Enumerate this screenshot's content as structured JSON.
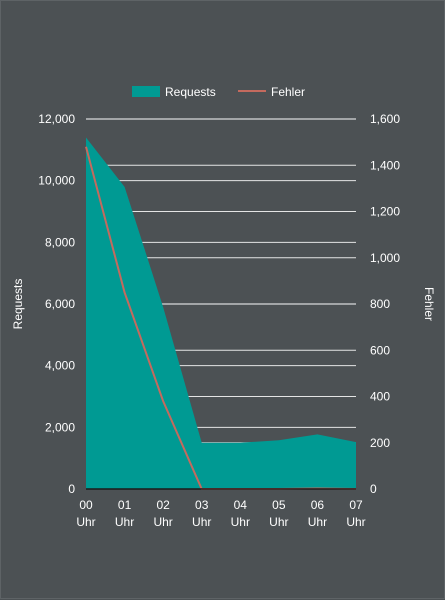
{
  "chart_data": {
    "type": "area",
    "categories": [
      [
        "00",
        "Uhr"
      ],
      [
        "01",
        "Uhr"
      ],
      [
        "02",
        "Uhr"
      ],
      [
        "03",
        "Uhr"
      ],
      [
        "04",
        "Uhr"
      ],
      [
        "05",
        "Uhr"
      ],
      [
        "06",
        "Uhr"
      ],
      [
        "07",
        "Uhr"
      ]
    ],
    "series": [
      {
        "name": "Requests",
        "type": "area",
        "axis": "left",
        "color": "#009a93",
        "values": [
          11400,
          9800,
          5900,
          1500,
          1500,
          1580,
          1770,
          1520
        ]
      },
      {
        "name": "Fehler",
        "type": "line",
        "axis": "right",
        "color": "#c46a5e",
        "values": [
          1480,
          850,
          380,
          0,
          0,
          0,
          2,
          0
        ]
      }
    ],
    "y_left": {
      "label": "Requests",
      "lim": [
        0,
        12000
      ],
      "ticks": [
        0,
        2000,
        4000,
        6000,
        8000,
        10000,
        12000
      ],
      "tick_labels": [
        "0",
        "2,000",
        "4,000",
        "6,000",
        "8,000",
        "10,000",
        "12,000"
      ]
    },
    "y_right": {
      "label": "Fehler",
      "lim": [
        0,
        1600
      ],
      "ticks": [
        0,
        200,
        400,
        600,
        800,
        1000,
        1200,
        1400,
        1600
      ],
      "tick_labels": [
        "0",
        "200",
        "400",
        "600",
        "800",
        "1,000",
        "1,200",
        "1,400",
        "1,600"
      ]
    },
    "grid": true,
    "legend_position": "top-center",
    "colors": {
      "background": "#4c5154",
      "text": "#ffffff",
      "grid": "#ffffff",
      "axis": "#1a1a1a"
    }
  }
}
